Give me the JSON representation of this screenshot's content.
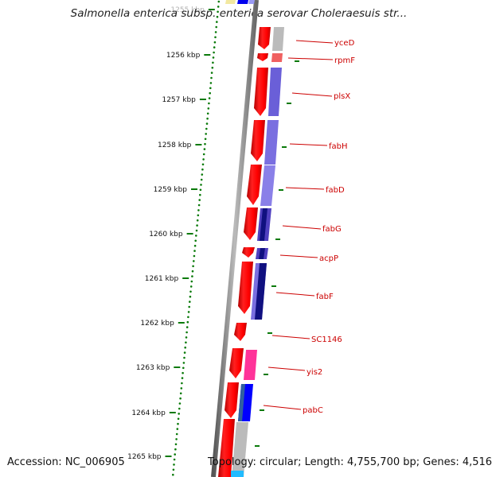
{
  "title": "Salmonella enterica subsp. enterica serovar Choleraesuis str...",
  "footer": {
    "accession": "Accession: NC_006905",
    "stats": "Topology: circular; Length: 4,755,700 bp; Genes: 4,516"
  },
  "kbp_ticks": [
    {
      "label": "1255 kbp",
      "faded": true
    },
    {
      "label": "1256 kbp"
    },
    {
      "label": "1257 kbp"
    },
    {
      "label": "1258 kbp"
    },
    {
      "label": "1259 kbp"
    },
    {
      "label": "1260 kbp"
    },
    {
      "label": "1261 kbp"
    },
    {
      "label": "1262 kbp"
    },
    {
      "label": "1263 kbp"
    },
    {
      "label": "1264 kbp"
    },
    {
      "label": "1265 kbp"
    }
  ],
  "genes": [
    {
      "name": "yceD"
    },
    {
      "name": "rpmF"
    },
    {
      "name": "plsX"
    },
    {
      "name": "fabH"
    },
    {
      "name": "fabD"
    },
    {
      "name": "fabG"
    },
    {
      "name": "acpP"
    },
    {
      "name": "fabF"
    },
    {
      "name": "SC1146"
    },
    {
      "name": "yis2"
    },
    {
      "name": "pabC"
    }
  ],
  "colors": {
    "gene_red": "#ff0000",
    "gene_dark_red": "#b30000",
    "label_red": "#cc0000",
    "tick_green": "#0a7a0a",
    "backbone_gray": "#888888",
    "purple": "#7a6fe0",
    "navy": "#101080",
    "magenta": "#ff3399",
    "blue": "#0000ff",
    "gray": "#bbbbbb"
  }
}
